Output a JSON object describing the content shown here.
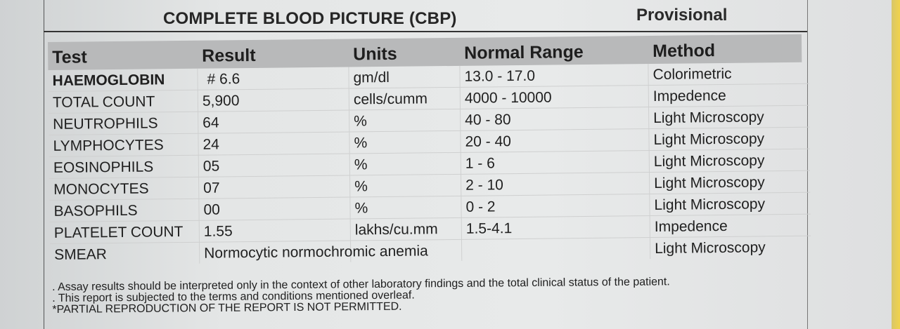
{
  "header": {
    "title": "COMPLETE BLOOD PICTURE (CBP)",
    "status": "Provisional"
  },
  "table": {
    "columns": [
      "Test",
      "Result",
      "Units",
      "Normal Range",
      "Method"
    ],
    "rows": [
      {
        "test": "HAEMOGLOBIN",
        "result": "# 6.6",
        "units": "gm/dl",
        "range": "13.0 - 17.0",
        "method": "Colorimetric"
      },
      {
        "test": "TOTAL COUNT",
        "result": "5,900",
        "units": "cells/cumm",
        "range": "4000 - 10000",
        "method": "Impedence"
      },
      {
        "test": "NEUTROPHILS",
        "result": "64",
        "units": "%",
        "range": "40 - 80",
        "method": "Light Microscopy"
      },
      {
        "test": "LYMPHOCYTES",
        "result": "24",
        "units": "%",
        "range": "20 - 40",
        "method": "Light Microscopy"
      },
      {
        "test": "EOSINOPHILS",
        "result": "05",
        "units": "%",
        "range": "1 - 6",
        "method": "Light Microscopy"
      },
      {
        "test": "MONOCYTES",
        "result": "07",
        "units": "%",
        "range": "2 - 10",
        "method": "Light Microscopy"
      },
      {
        "test": "BASOPHILS",
        "result": "00",
        "units": "%",
        "range": "0 - 2",
        "method": "Light Microscopy"
      },
      {
        "test": "PLATELET COUNT",
        "result": "1.55",
        "units": "lakhs/cu.mm",
        "range": "1.5-4.1",
        "method": "Impedence"
      },
      {
        "test": "SMEAR",
        "result": "Normocytic normochromic anemia",
        "units": "",
        "range": "",
        "method": "Light Microscopy"
      }
    ]
  },
  "notes": [
    ". Assay results should be interpreted only in the context of other laboratory findings and the total clinical status of the patient.",
    ". This report is subjected to the terms and conditions mentioned overleaf.",
    "*PARTIAL REPRODUCTION OF THE REPORT IS NOT PERMITTED."
  ]
}
